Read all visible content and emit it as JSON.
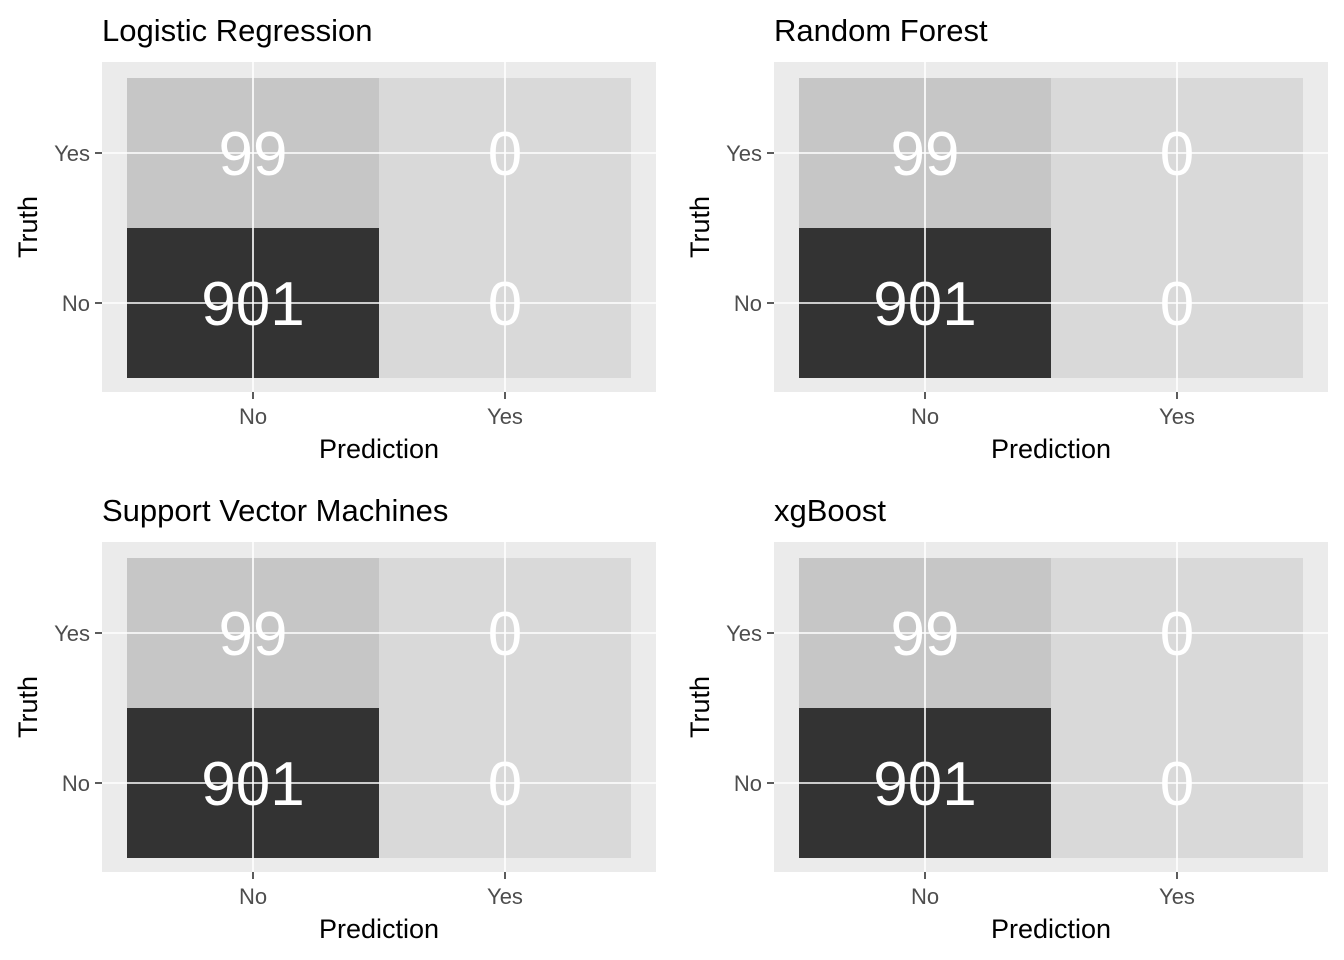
{
  "chart_data": [
    {
      "type": "heatmap",
      "title": "Logistic Regression",
      "xlabel": "Prediction",
      "ylabel": "Truth",
      "x_categories": [
        "No",
        "Yes"
      ],
      "y_categories": [
        "Yes",
        "No"
      ],
      "cells": [
        {
          "prediction": "No",
          "truth": "Yes",
          "value": 99
        },
        {
          "prediction": "Yes",
          "truth": "Yes",
          "value": 0
        },
        {
          "prediction": "No",
          "truth": "No",
          "value": 901
        },
        {
          "prediction": "Yes",
          "truth": "No",
          "value": 0
        }
      ],
      "grid": true,
      "legend": "none"
    },
    {
      "type": "heatmap",
      "title": "Random Forest",
      "xlabel": "Prediction",
      "ylabel": "Truth",
      "x_categories": [
        "No",
        "Yes"
      ],
      "y_categories": [
        "Yes",
        "No"
      ],
      "cells": [
        {
          "prediction": "No",
          "truth": "Yes",
          "value": 99
        },
        {
          "prediction": "Yes",
          "truth": "Yes",
          "value": 0
        },
        {
          "prediction": "No",
          "truth": "No",
          "value": 901
        },
        {
          "prediction": "Yes",
          "truth": "No",
          "value": 0
        }
      ],
      "grid": true,
      "legend": "none"
    },
    {
      "type": "heatmap",
      "title": "Support Vector Machines",
      "xlabel": "Prediction",
      "ylabel": "Truth",
      "x_categories": [
        "No",
        "Yes"
      ],
      "y_categories": [
        "Yes",
        "No"
      ],
      "cells": [
        {
          "prediction": "No",
          "truth": "Yes",
          "value": 99
        },
        {
          "prediction": "Yes",
          "truth": "Yes",
          "value": 0
        },
        {
          "prediction": "No",
          "truth": "No",
          "value": 901
        },
        {
          "prediction": "Yes",
          "truth": "No",
          "value": 0
        }
      ],
      "grid": true,
      "legend": "none"
    },
    {
      "type": "heatmap",
      "title": "xgBoost",
      "xlabel": "Prediction",
      "ylabel": "Truth",
      "x_categories": [
        "No",
        "Yes"
      ],
      "y_categories": [
        "Yes",
        "No"
      ],
      "cells": [
        {
          "prediction": "No",
          "truth": "Yes",
          "value": 99
        },
        {
          "prediction": "Yes",
          "truth": "Yes",
          "value": 0
        },
        {
          "prediction": "No",
          "truth": "No",
          "value": 901
        },
        {
          "prediction": "Yes",
          "truth": "No",
          "value": 0
        }
      ],
      "grid": true,
      "legend": "none"
    }
  ],
  "colors": {
    "panel_background": "#ebebeb",
    "grid_line": "#ffffff",
    "cell_low": "#d9d9d9",
    "cell_mid": "#c6c6c6",
    "cell_high": "#333333",
    "cell_text": "#ffffff",
    "axis_text": "#4d4d4d",
    "title_text": "#000000"
  }
}
